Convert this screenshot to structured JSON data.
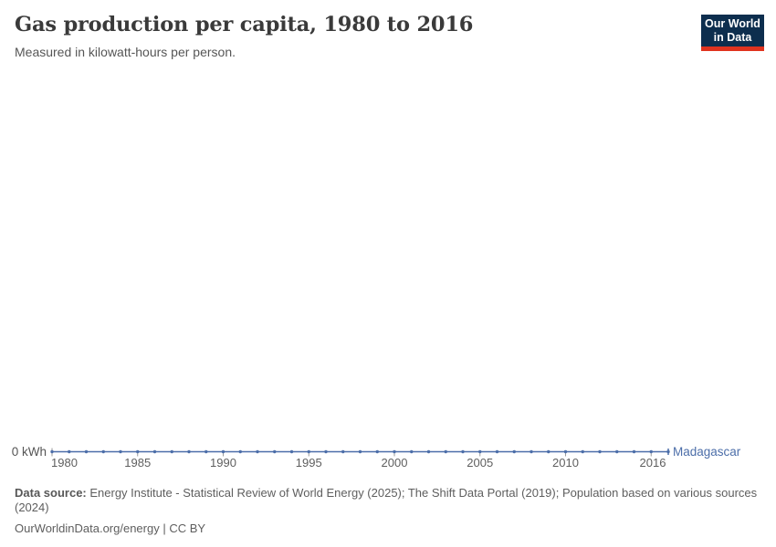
{
  "header": {
    "title": "Gas production per capita, 1980 to 2016",
    "subtitle": "Measured in kilowatt-hours per person."
  },
  "logo": {
    "line1": "Our World",
    "line2": "in Data",
    "bg_color": "#0d2e4e",
    "accent_color": "#e0331f"
  },
  "chart_data": {
    "type": "line",
    "title": "Gas production per capita, 1980 to 2016",
    "unit": "kilowatt-hours per person",
    "entity": "Madagascar",
    "x": [
      1980,
      1981,
      1982,
      1983,
      1984,
      1985,
      1986,
      1987,
      1988,
      1989,
      1990,
      1991,
      1992,
      1993,
      1994,
      1995,
      1996,
      1997,
      1998,
      1999,
      2000,
      2001,
      2002,
      2003,
      2004,
      2005,
      2006,
      2007,
      2008,
      2009,
      2010,
      2011,
      2012,
      2013,
      2014,
      2015,
      2016
    ],
    "series": [
      {
        "name": "Madagascar",
        "values": [
          0,
          0,
          0,
          0,
          0,
          0,
          0,
          0,
          0,
          0,
          0,
          0,
          0,
          0,
          0,
          0,
          0,
          0,
          0,
          0,
          0,
          0,
          0,
          0,
          0,
          0,
          0,
          0,
          0,
          0,
          0,
          0,
          0,
          0,
          0,
          0,
          0
        ]
      }
    ],
    "xticks": [
      1980,
      1985,
      1990,
      1995,
      2000,
      2005,
      2010,
      2016
    ],
    "y_axis_zero_label": "0 kWh",
    "ylim": [
      0,
      0
    ],
    "grid": false,
    "legend_position": "end-of-line",
    "line_color": "#4c6ea9",
    "tick_color": "#9a9a9a",
    "tick_label_color": "#5f5f5f",
    "zero_label_color": "#555555"
  },
  "footer": {
    "source_label": "Data source:",
    "source_text": " Energy Institute - Statistical Review of World Energy (2025); The Shift Data Portal (2019); Population based on various sources (2024)",
    "license_text": "OurWorldinData.org/energy | CC BY"
  }
}
